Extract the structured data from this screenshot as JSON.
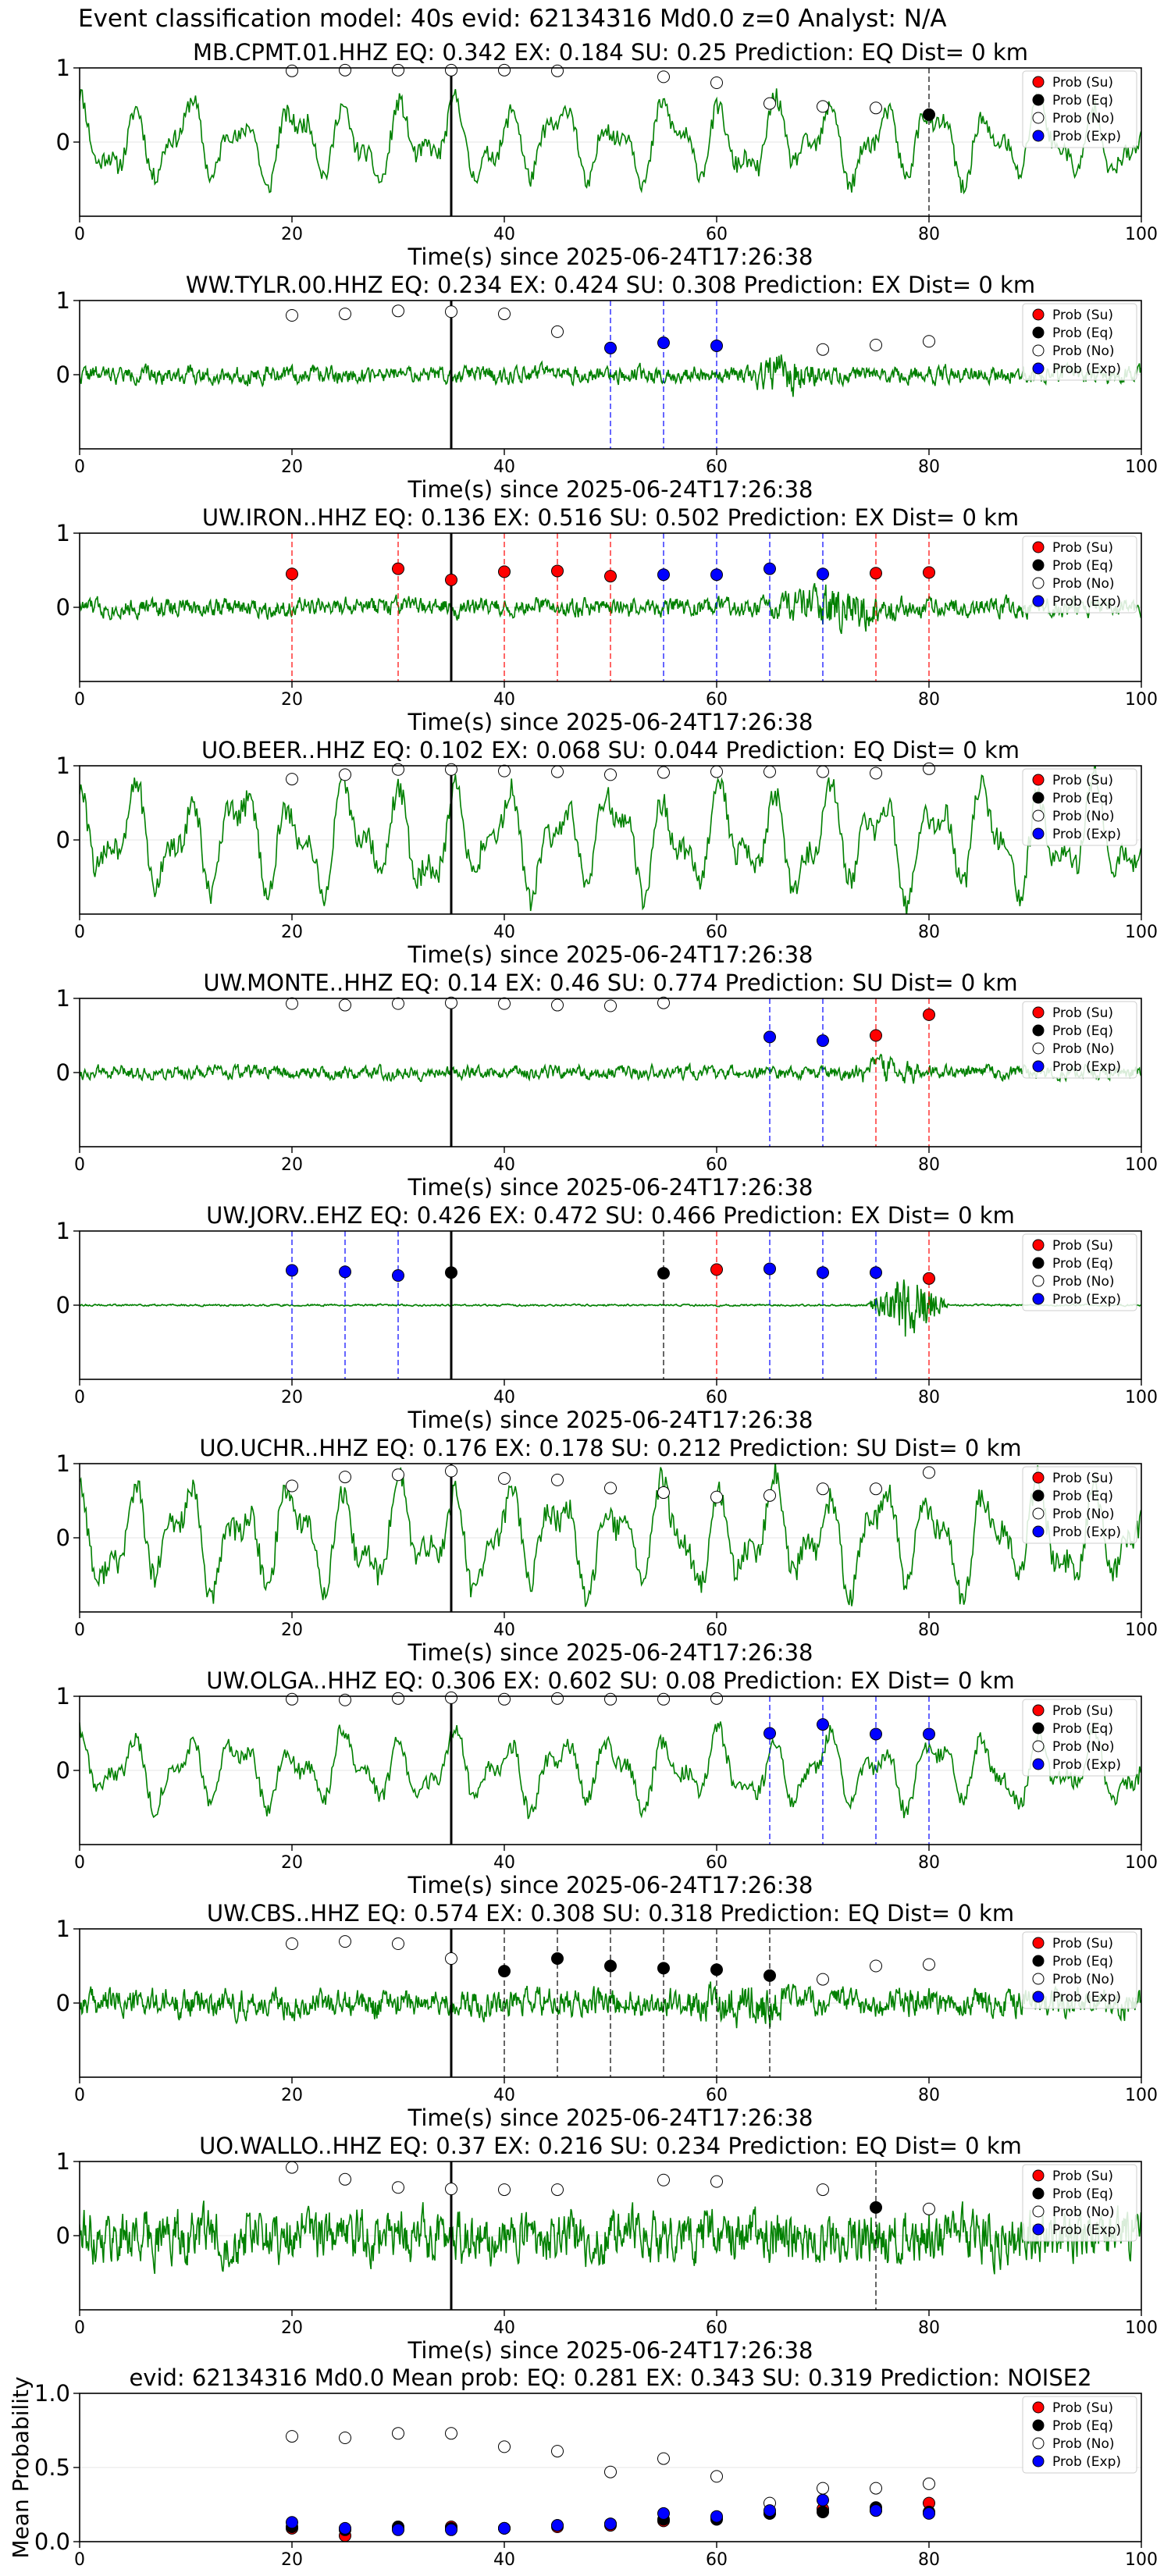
{
  "suptitle": "Event classification model: 40s evid: 62134316 Md0.0 z=0 Analyst: N/A",
  "colors": {
    "waveform": "#008000",
    "su": "#ff0000",
    "eq": "#000000",
    "no": "#ffffff",
    "exp": "#0000ff",
    "p_arrival": "#000000",
    "grid": "#e6e6e6"
  },
  "legend": {
    "position": "upper-right",
    "items": [
      "Prob (Su)",
      "Prob (Eq)",
      "Prob (No)",
      "Prob (Exp)"
    ]
  },
  "chart_data": [
    {
      "type": "line",
      "title": "MB.CPMT.01.HHZ   EQ: 0.342  EX: 0.184  SU: 0.25   Prediction: EQ    Dist= 0 km",
      "xlabel": "Time(s) since 2025-06-24T17:26:38",
      "xlim": [
        0,
        100
      ],
      "ylim": [
        -1,
        1
      ],
      "xticks": [
        0,
        20,
        40,
        60,
        80,
        100
      ],
      "yticks": [
        0,
        1
      ],
      "waveform": {
        "style": "lowfreq",
        "amplitude": 0.45,
        "seed": 11
      },
      "p_arrival": 35,
      "prob_times": [
        20,
        25,
        30,
        35,
        40,
        45,
        50,
        55,
        60,
        65,
        70,
        75,
        80
      ],
      "class": [
        "no",
        "no",
        "no",
        "no",
        "no",
        "no",
        "",
        "no",
        "no",
        "no",
        "no",
        "no",
        "eq"
      ],
      "prob": [
        0.96,
        0.97,
        0.97,
        0.97,
        0.97,
        0.96,
        null,
        0.88,
        0.8,
        0.52,
        0.48,
        0.46,
        0.37
      ]
    },
    {
      "type": "line",
      "title": "WW.TYLR.00.HHZ   EQ: 0.234  EX: 0.424  SU: 0.308   Prediction: EX    Dist= 0 km",
      "xlabel": "Time(s) since 2025-06-24T17:26:38",
      "xlim": [
        0,
        100
      ],
      "ylim": [
        -1,
        1
      ],
      "xticks": [
        0,
        20,
        40,
        60,
        80,
        100
      ],
      "yticks": [
        0,
        1
      ],
      "waveform": {
        "style": "noisy",
        "amplitude": 0.18,
        "seed": 22,
        "burst": [
          63,
          70,
          3.0
        ]
      },
      "p_arrival": 35,
      "prob_times": [
        20,
        25,
        30,
        35,
        40,
        45,
        50,
        55,
        60,
        65,
        70,
        75,
        80
      ],
      "class": [
        "no",
        "no",
        "no",
        "no",
        "no",
        "no",
        "exp",
        "exp",
        "exp",
        "",
        "no",
        "no",
        "no"
      ],
      "prob": [
        0.8,
        0.82,
        0.86,
        0.85,
        0.82,
        0.58,
        0.36,
        0.43,
        0.39,
        null,
        0.34,
        0.4,
        0.45
      ]
    },
    {
      "type": "line",
      "title": "UW.IRON..HHZ   EQ: 0.136  EX: 0.516  SU: 0.502   Prediction: EX    Dist= 0 km",
      "xlabel": "Time(s) since 2025-06-24T17:26:38",
      "xlim": [
        0,
        100
      ],
      "ylim": [
        -1,
        1
      ],
      "xticks": [
        0,
        20,
        40,
        60,
        80,
        100
      ],
      "yticks": [
        0,
        1
      ],
      "waveform": {
        "style": "noisy",
        "amplitude": 0.2,
        "seed": 33,
        "burst": [
          64,
          78,
          2.6
        ]
      },
      "p_arrival": 35,
      "prob_times": [
        20,
        25,
        30,
        35,
        40,
        45,
        50,
        55,
        60,
        65,
        70,
        75,
        80
      ],
      "class": [
        "su",
        "",
        "su",
        "su",
        "su",
        "su",
        "su",
        "exp",
        "exp",
        "exp",
        "exp",
        "su",
        "su"
      ],
      "prob": [
        0.45,
        null,
        0.52,
        0.37,
        0.48,
        0.49,
        0.42,
        0.44,
        0.44,
        0.52,
        0.45,
        0.46,
        0.47
      ]
    },
    {
      "type": "line",
      "title": "UO.BEER..HHZ   EQ: 0.102  EX: 0.068  SU: 0.044   Prediction: EQ    Dist= 0 km",
      "xlabel": "Time(s) since 2025-06-24T17:26:38",
      "xlim": [
        0,
        100
      ],
      "ylim": [
        -1,
        1
      ],
      "xticks": [
        0,
        20,
        40,
        60,
        80,
        100
      ],
      "yticks": [
        0,
        1
      ],
      "waveform": {
        "style": "lowfreq",
        "amplitude": 0.6,
        "seed": 44
      },
      "p_arrival": 35,
      "prob_times": [
        20,
        25,
        30,
        35,
        40,
        45,
        50,
        55,
        60,
        65,
        70,
        75,
        80
      ],
      "class": [
        "no",
        "no",
        "no",
        "no",
        "no",
        "no",
        "no",
        "no",
        "no",
        "no",
        "no",
        "no",
        "no"
      ],
      "prob": [
        0.82,
        0.88,
        0.95,
        0.95,
        0.93,
        0.92,
        0.88,
        0.91,
        0.92,
        0.92,
        0.92,
        0.9,
        0.96
      ]
    },
    {
      "type": "line",
      "title": "UW.MONTE..HHZ   EQ: 0.14  EX: 0.46  SU: 0.774   Prediction: SU    Dist= 0 km",
      "xlabel": "Time(s) since 2025-06-24T17:26:38",
      "xlim": [
        0,
        100
      ],
      "ylim": [
        -1,
        1
      ],
      "xticks": [
        0,
        20,
        40,
        60,
        80,
        100
      ],
      "yticks": [
        0,
        1
      ],
      "waveform": {
        "style": "noisy",
        "amplitude": 0.14,
        "seed": 55,
        "burst": [
          72,
          80,
          2.2
        ]
      },
      "p_arrival": 35,
      "prob_times": [
        20,
        25,
        30,
        35,
        40,
        45,
        50,
        55,
        60,
        65,
        70,
        75,
        80
      ],
      "class": [
        "no",
        "no",
        "no",
        "no",
        "no",
        "no",
        "no",
        "no",
        "",
        "exp",
        "exp",
        "su",
        "su"
      ],
      "prob": [
        0.93,
        0.91,
        0.93,
        0.94,
        0.93,
        0.91,
        0.9,
        0.94,
        null,
        0.48,
        0.43,
        0.5,
        0.78
      ]
    },
    {
      "type": "line",
      "title": "UW.JORV..EHZ   EQ: 0.426  EX: 0.472  SU: 0.466   Prediction: EX    Dist= 0 km",
      "xlabel": "Time(s) since 2025-06-24T17:26:38",
      "xlim": [
        0,
        100
      ],
      "ylim": [
        -1,
        1
      ],
      "xticks": [
        0,
        20,
        40,
        60,
        80,
        100
      ],
      "yticks": [
        0,
        1
      ],
      "waveform": {
        "style": "quiet",
        "amplitude": 0.02,
        "seed": 66,
        "burst": [
          74,
          82,
          25
        ]
      },
      "p_arrival": 35,
      "prob_times": [
        20,
        25,
        30,
        35,
        40,
        45,
        50,
        55,
        60,
        65,
        70,
        75,
        80
      ],
      "class": [
        "exp",
        "exp",
        "exp",
        "eq",
        "",
        "",
        "",
        "eq",
        "su",
        "exp",
        "exp",
        "exp",
        "su"
      ],
      "prob": [
        0.47,
        0.45,
        0.4,
        0.44,
        null,
        null,
        null,
        0.43,
        0.48,
        0.49,
        0.44,
        0.44,
        0.36
      ]
    },
    {
      "type": "line",
      "title": "UO.UCHR..HHZ   EQ: 0.176  EX: 0.178  SU: 0.212   Prediction: SU    Dist= 0 km",
      "xlabel": "Time(s) since 2025-06-24T17:26:38",
      "xlim": [
        0,
        100
      ],
      "ylim": [
        -1,
        1
      ],
      "xticks": [
        0,
        20,
        40,
        60,
        80,
        100
      ],
      "yticks": [
        0,
        1
      ],
      "waveform": {
        "style": "lowfreq",
        "amplitude": 0.6,
        "seed": 77
      },
      "p_arrival": 35,
      "prob_times": [
        20,
        25,
        30,
        35,
        40,
        45,
        50,
        55,
        60,
        65,
        70,
        75,
        80
      ],
      "class": [
        "no",
        "no",
        "no",
        "no",
        "no",
        "no",
        "no",
        "no",
        "no",
        "no",
        "no",
        "no",
        "no"
      ],
      "prob": [
        0.7,
        0.82,
        0.85,
        0.9,
        0.8,
        0.78,
        0.67,
        0.61,
        0.55,
        0.57,
        0.66,
        0.66,
        0.88
      ]
    },
    {
      "type": "line",
      "title": "UW.OLGA..HHZ   EQ: 0.306  EX: 0.602  SU: 0.08   Prediction: EX    Dist= 0 km",
      "xlabel": "Time(s) since 2025-06-24T17:26:38",
      "xlim": [
        0,
        100
      ],
      "ylim": [
        -1,
        1
      ],
      "xticks": [
        0,
        20,
        40,
        60,
        80,
        100
      ],
      "yticks": [
        0,
        1
      ],
      "waveform": {
        "style": "lowfreq",
        "amplitude": 0.4,
        "seed": 88
      },
      "p_arrival": 35,
      "prob_times": [
        20,
        25,
        30,
        35,
        40,
        45,
        50,
        55,
        60,
        65,
        70,
        75,
        80
      ],
      "class": [
        "no",
        "no",
        "no",
        "no",
        "no",
        "no",
        "no",
        "no",
        "no",
        "exp",
        "exp",
        "exp",
        "exp"
      ],
      "prob": [
        0.96,
        0.95,
        0.97,
        0.98,
        0.96,
        0.97,
        0.96,
        0.96,
        0.97,
        0.5,
        0.62,
        0.49,
        0.49
      ]
    },
    {
      "type": "line",
      "title": "UW.CBS..HHZ   EQ: 0.574  EX: 0.308  SU: 0.318   Prediction: EQ    Dist= 0 km",
      "xlabel": "Time(s) since 2025-06-24T17:26:38",
      "xlim": [
        0,
        100
      ],
      "ylim": [
        -1,
        1
      ],
      "xticks": [
        0,
        20,
        40,
        60,
        80,
        100
      ],
      "yticks": [
        0,
        1
      ],
      "waveform": {
        "style": "noisy",
        "amplitude": 0.3,
        "seed": 99,
        "burst": [
          58,
          68,
          1.7
        ]
      },
      "p_arrival": 35,
      "prob_times": [
        20,
        25,
        30,
        35,
        40,
        45,
        50,
        55,
        60,
        65,
        70,
        75,
        80
      ],
      "class": [
        "no",
        "no",
        "no",
        "no",
        "eq",
        "eq",
        "eq",
        "eq",
        "eq",
        "eq",
        "no",
        "no",
        "no"
      ],
      "prob": [
        0.8,
        0.83,
        0.8,
        0.6,
        0.43,
        0.6,
        0.5,
        0.47,
        0.45,
        0.37,
        0.32,
        0.5,
        0.52
      ]
    },
    {
      "type": "line",
      "title": "UO.WALLO..HHZ   EQ: 0.37  EX: 0.216  SU: 0.234   Prediction: EQ    Dist= 0 km",
      "xlabel": "Time(s) since 2025-06-24T17:26:38",
      "xlim": [
        0,
        100
      ],
      "ylim": [
        -1,
        1
      ],
      "xticks": [
        0,
        20,
        40,
        60,
        80,
        100
      ],
      "yticks": [
        0,
        1
      ],
      "waveform": {
        "style": "noisy",
        "amplitude": 0.55,
        "seed": 111
      },
      "p_arrival": 35,
      "prob_times": [
        20,
        25,
        30,
        35,
        40,
        45,
        50,
        55,
        60,
        65,
        70,
        75,
        80
      ],
      "class": [
        "no",
        "no",
        "no",
        "no",
        "no",
        "no",
        "",
        "no",
        "no",
        "",
        "no",
        "eq",
        "no"
      ],
      "prob": [
        0.92,
        0.76,
        0.65,
        0.63,
        0.62,
        0.62,
        null,
        0.75,
        0.73,
        null,
        0.62,
        0.38,
        0.36
      ]
    },
    {
      "type": "scatter",
      "title": "evid: 62134316  Md0.0   Mean prob:   EQ: 0.281  EX: 0.343  SU: 0.319   Prediction: NOISE2",
      "ylabel": "Mean Probability",
      "xlim": [
        0,
        100
      ],
      "ylim": [
        0,
        1
      ],
      "xticks": [
        0,
        20,
        40,
        60,
        80,
        100
      ],
      "yticks": [
        0.0,
        0.5,
        1.0
      ],
      "x": [
        20,
        25,
        30,
        35,
        40,
        45,
        50,
        55,
        60,
        65,
        70,
        75,
        80
      ],
      "series": [
        {
          "name": "Prob (Su)",
          "class": "su",
          "values": [
            0.09,
            0.04,
            0.09,
            0.1,
            0.09,
            0.1,
            0.11,
            0.14,
            0.16,
            0.19,
            0.22,
            0.21,
            0.26
          ]
        },
        {
          "name": "Prob (Eq)",
          "class": "eq",
          "values": [
            0.1,
            0.08,
            0.1,
            0.09,
            0.09,
            0.11,
            0.12,
            0.15,
            0.15,
            0.19,
            0.2,
            0.23,
            0.2
          ]
        },
        {
          "name": "Prob (No)",
          "class": "no",
          "values": [
            0.71,
            0.7,
            0.73,
            0.73,
            0.64,
            0.61,
            0.47,
            0.56,
            0.44,
            0.26,
            0.36,
            0.36,
            0.39
          ]
        },
        {
          "name": "Prob (Exp)",
          "class": "exp",
          "values": [
            0.13,
            0.09,
            0.08,
            0.08,
            0.09,
            0.11,
            0.12,
            0.19,
            0.17,
            0.21,
            0.28,
            0.21,
            0.19
          ]
        }
      ]
    }
  ]
}
